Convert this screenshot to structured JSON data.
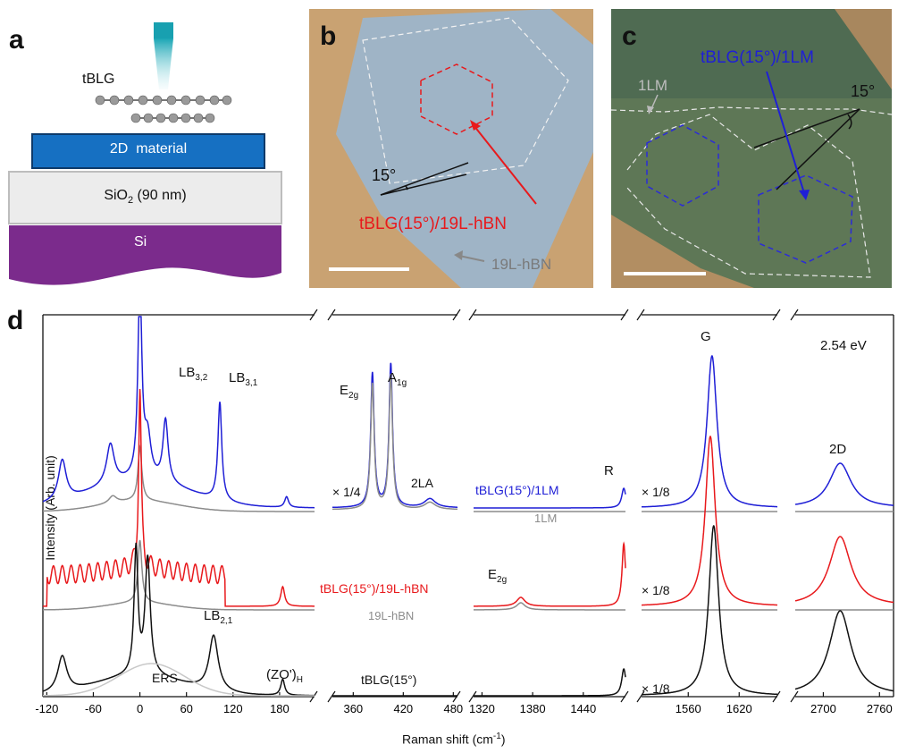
{
  "panels": {
    "a": {
      "label": "a",
      "tblg": "tBLG",
      "layer2d": "2D  material",
      "sio2_base": "SiO",
      "sio2_sub": "2",
      "sio2_rest": " (90 nm)",
      "si": "Si"
    },
    "b": {
      "label": "b",
      "angle": "15°",
      "sample": "tBLG(15°)/19L-hBN",
      "substrate": "19L-hBN"
    },
    "c": {
      "label": "c",
      "angle": "15°",
      "sample": "tBLG(15°)/1LM",
      "flake": "1LM"
    },
    "d": {
      "label": "d",
      "ylabel": "Intensity (Arb. unit)",
      "xlabel_base": "Raman shift (cm",
      "xlabel_sup": "-1",
      "xlabel_end": ")",
      "laser": "2.54 eV",
      "scale_quarter": "× 1/4",
      "scale_eighth": "× 1/8",
      "series_labels": {
        "tblg_1lm": "tBLG(15°)/1LM",
        "ref_1lm": "1LM",
        "tblg_hbn": "tBLG(15°)/19L-hBN",
        "ref_hbn": "19L-hBN",
        "tblg": "tBLG(15°)"
      },
      "peaks": {
        "lb32_base": "LB",
        "lb32_sub": "3,2",
        "lb31_base": "LB",
        "lb31_sub": "3,1",
        "lb21_base": "LB",
        "lb21_sub": "2,1",
        "ers": "ERS",
        "zo_base": "(ZO')",
        "zo_sub": "H",
        "e2g_base": "E",
        "e2g_sub": "2g",
        "a1g_base": "A",
        "a1g_sub": "1g",
        "la2": "2LA",
        "r": "R",
        "e2g_hbn_base": "E",
        "e2g_hbn_sub": "2g",
        "g": "G",
        "d2": "2D"
      }
    }
  },
  "colors": {
    "tblg_1lm": "#1f1fd6",
    "tblg_hbn": "#e8191c",
    "tblg": "#111111",
    "reference": "#8c8c8c",
    "fit": "#c8c8c8"
  },
  "chart_data": {
    "type": "line",
    "segments": [
      {
        "xlim": [
          -125,
          225
        ],
        "ticks": [
          -120,
          -60,
          0,
          60,
          120,
          180
        ]
      },
      {
        "xlim": [
          335,
          485
        ],
        "ticks": [
          360,
          420,
          480
        ]
      },
      {
        "xlim": [
          1310,
          1490
        ],
        "ticks": [
          1320,
          1380,
          1440
        ]
      },
      {
        "xlim": [
          1505,
          1665
        ],
        "ticks": [
          1560,
          1620
        ]
      },
      {
        "xlim": [
          2670,
          2775
        ],
        "ticks": [
          2700,
          2760
        ]
      }
    ],
    "series": [
      {
        "name": "tBLG(15°)/1LM",
        "peaks_cm1": {
          "LB3,2": 33,
          "LB3,1": 103,
          "E2g": 383,
          "A1g": 405,
          "2LA": 452,
          "R": 1488,
          "G": 1588,
          "2D": 2718
        }
      },
      {
        "name": "1LM"
      },
      {
        "name": "tBLG(15°)/19L-hBN",
        "peaks_cm1": {
          "E2g": 1366,
          "R": 1488,
          "G": 1586,
          "2D": 2718
        }
      },
      {
        "name": "19L-hBN"
      },
      {
        "name": "tBLG(15°)",
        "peaks_cm1": {
          "LB2,1": 95,
          "(ZO')H": 184,
          "R": 1488,
          "G": 1590,
          "2D": 2718
        }
      }
    ]
  }
}
